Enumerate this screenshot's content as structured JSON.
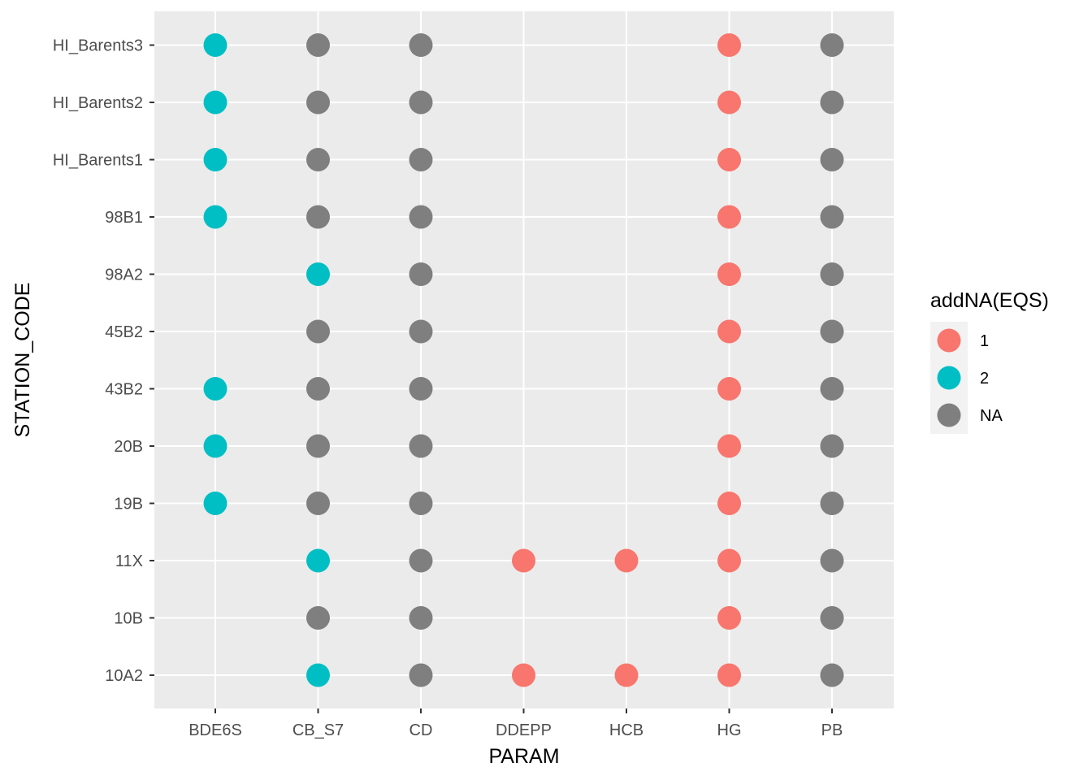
{
  "chart_data": {
    "type": "scatter",
    "xlabel": "PARAM",
    "ylabel": "STATION_CODE",
    "x_categories": [
      "BDE6S",
      "CB_S7",
      "CD",
      "DDEPP",
      "HCB",
      "HG",
      "PB"
    ],
    "y_categories": [
      "10A2",
      "10B",
      "11X",
      "19B",
      "20B",
      "43B2",
      "45B2",
      "98A2",
      "98B1",
      "HI_Barents1",
      "HI_Barents2",
      "HI_Barents3"
    ],
    "legend": {
      "title": "addNA(EQS)",
      "position": "right",
      "entries": [
        {
          "label": "1",
          "color": "#F8766D"
        },
        {
          "label": "2",
          "color": "#00BFC4"
        },
        {
          "label": "NA",
          "color": "#7F7F7F"
        }
      ]
    },
    "grid": true,
    "points": [
      {
        "x": "BDE6S",
        "y": "HI_Barents3",
        "group": "2"
      },
      {
        "x": "BDE6S",
        "y": "HI_Barents2",
        "group": "2"
      },
      {
        "x": "BDE6S",
        "y": "HI_Barents1",
        "group": "2"
      },
      {
        "x": "BDE6S",
        "y": "98B1",
        "group": "2"
      },
      {
        "x": "BDE6S",
        "y": "43B2",
        "group": "2"
      },
      {
        "x": "BDE6S",
        "y": "20B",
        "group": "2"
      },
      {
        "x": "BDE6S",
        "y": "19B",
        "group": "2"
      },
      {
        "x": "CB_S7",
        "y": "HI_Barents3",
        "group": "NA"
      },
      {
        "x": "CB_S7",
        "y": "HI_Barents2",
        "group": "NA"
      },
      {
        "x": "CB_S7",
        "y": "HI_Barents1",
        "group": "NA"
      },
      {
        "x": "CB_S7",
        "y": "98B1",
        "group": "NA"
      },
      {
        "x": "CB_S7",
        "y": "98A2",
        "group": "2"
      },
      {
        "x": "CB_S7",
        "y": "45B2",
        "group": "NA"
      },
      {
        "x": "CB_S7",
        "y": "43B2",
        "group": "NA"
      },
      {
        "x": "CB_S7",
        "y": "20B",
        "group": "NA"
      },
      {
        "x": "CB_S7",
        "y": "19B",
        "group": "NA"
      },
      {
        "x": "CB_S7",
        "y": "11X",
        "group": "2"
      },
      {
        "x": "CB_S7",
        "y": "10B",
        "group": "NA"
      },
      {
        "x": "CB_S7",
        "y": "10A2",
        "group": "2"
      },
      {
        "x": "CD",
        "y": "HI_Barents3",
        "group": "NA"
      },
      {
        "x": "CD",
        "y": "HI_Barents2",
        "group": "NA"
      },
      {
        "x": "CD",
        "y": "HI_Barents1",
        "group": "NA"
      },
      {
        "x": "CD",
        "y": "98B1",
        "group": "NA"
      },
      {
        "x": "CD",
        "y": "98A2",
        "group": "NA"
      },
      {
        "x": "CD",
        "y": "45B2",
        "group": "NA"
      },
      {
        "x": "CD",
        "y": "43B2",
        "group": "NA"
      },
      {
        "x": "CD",
        "y": "20B",
        "group": "NA"
      },
      {
        "x": "CD",
        "y": "19B",
        "group": "NA"
      },
      {
        "x": "CD",
        "y": "11X",
        "group": "NA"
      },
      {
        "x": "CD",
        "y": "10B",
        "group": "NA"
      },
      {
        "x": "CD",
        "y": "10A2",
        "group": "NA"
      },
      {
        "x": "DDEPP",
        "y": "11X",
        "group": "1"
      },
      {
        "x": "DDEPP",
        "y": "10A2",
        "group": "1"
      },
      {
        "x": "HCB",
        "y": "11X",
        "group": "1"
      },
      {
        "x": "HCB",
        "y": "10A2",
        "group": "1"
      },
      {
        "x": "HG",
        "y": "HI_Barents3",
        "group": "1"
      },
      {
        "x": "HG",
        "y": "HI_Barents2",
        "group": "1"
      },
      {
        "x": "HG",
        "y": "HI_Barents1",
        "group": "1"
      },
      {
        "x": "HG",
        "y": "98B1",
        "group": "1"
      },
      {
        "x": "HG",
        "y": "98A2",
        "group": "1"
      },
      {
        "x": "HG",
        "y": "45B2",
        "group": "1"
      },
      {
        "x": "HG",
        "y": "43B2",
        "group": "1"
      },
      {
        "x": "HG",
        "y": "20B",
        "group": "1"
      },
      {
        "x": "HG",
        "y": "19B",
        "group": "1"
      },
      {
        "x": "HG",
        "y": "11X",
        "group": "1"
      },
      {
        "x": "HG",
        "y": "10B",
        "group": "1"
      },
      {
        "x": "HG",
        "y": "10A2",
        "group": "1"
      },
      {
        "x": "PB",
        "y": "HI_Barents3",
        "group": "NA"
      },
      {
        "x": "PB",
        "y": "HI_Barents2",
        "group": "NA"
      },
      {
        "x": "PB",
        "y": "HI_Barents1",
        "group": "NA"
      },
      {
        "x": "PB",
        "y": "98B1",
        "group": "NA"
      },
      {
        "x": "PB",
        "y": "98A2",
        "group": "NA"
      },
      {
        "x": "PB",
        "y": "45B2",
        "group": "NA"
      },
      {
        "x": "PB",
        "y": "43B2",
        "group": "NA"
      },
      {
        "x": "PB",
        "y": "20B",
        "group": "NA"
      },
      {
        "x": "PB",
        "y": "19B",
        "group": "NA"
      },
      {
        "x": "PB",
        "y": "11X",
        "group": "NA"
      },
      {
        "x": "PB",
        "y": "10B",
        "group": "NA"
      },
      {
        "x": "PB",
        "y": "10A2",
        "group": "NA"
      }
    ]
  }
}
